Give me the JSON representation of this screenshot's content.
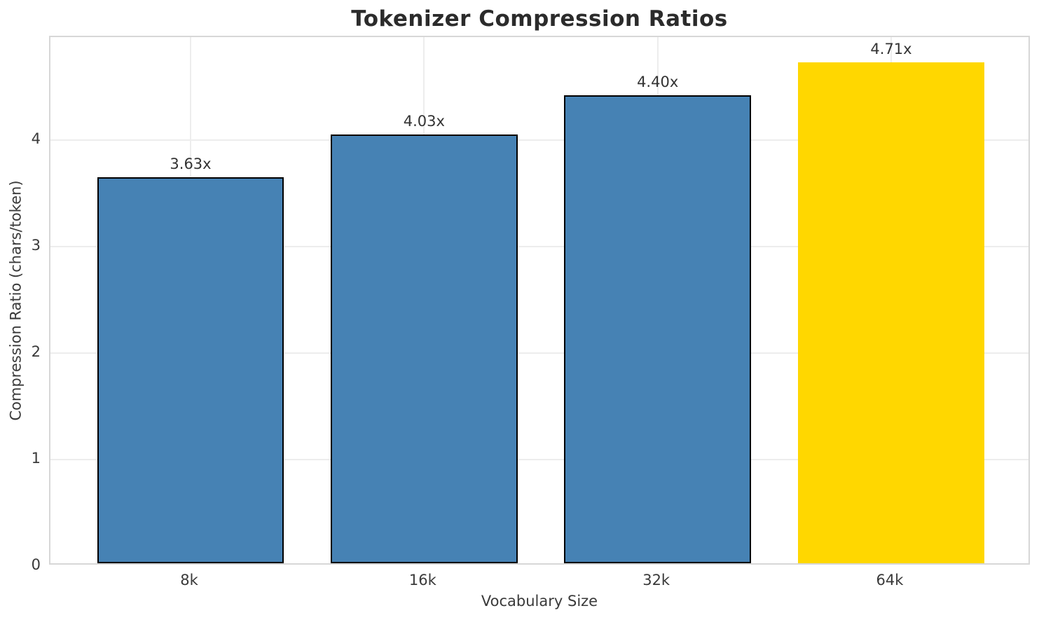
{
  "chart_data": {
    "type": "bar",
    "title": "Tokenizer Compression Ratios",
    "xlabel": "Vocabulary Size",
    "ylabel": "Compression Ratio (chars/token)",
    "categories": [
      "8k",
      "16k",
      "32k",
      "64k"
    ],
    "values": [
      3.63,
      4.03,
      4.4,
      4.71
    ],
    "bar_labels": [
      "3.63x",
      "4.03x",
      "4.40x",
      "4.71x"
    ],
    "bar_colors": [
      "#4682b4",
      "#4682b4",
      "#4682b4",
      "#ffd700"
    ],
    "bar_edge_colors": [
      "#000000",
      "#000000",
      "#000000",
      "none"
    ],
    "highlighted_category": "64k",
    "yticks": [
      0,
      1,
      2,
      3,
      4
    ],
    "ylim": [
      0,
      4.97
    ],
    "xlim": [
      -0.6,
      3.6
    ],
    "bar_width": 0.8,
    "grid": "both",
    "legend": "none",
    "grid_color": "#ededed",
    "spine_color": "#d7d7d7",
    "tick_text_color": "#3a3a3a",
    "title_color": "#2b2b2b",
    "value_label_color": "#333333"
  }
}
